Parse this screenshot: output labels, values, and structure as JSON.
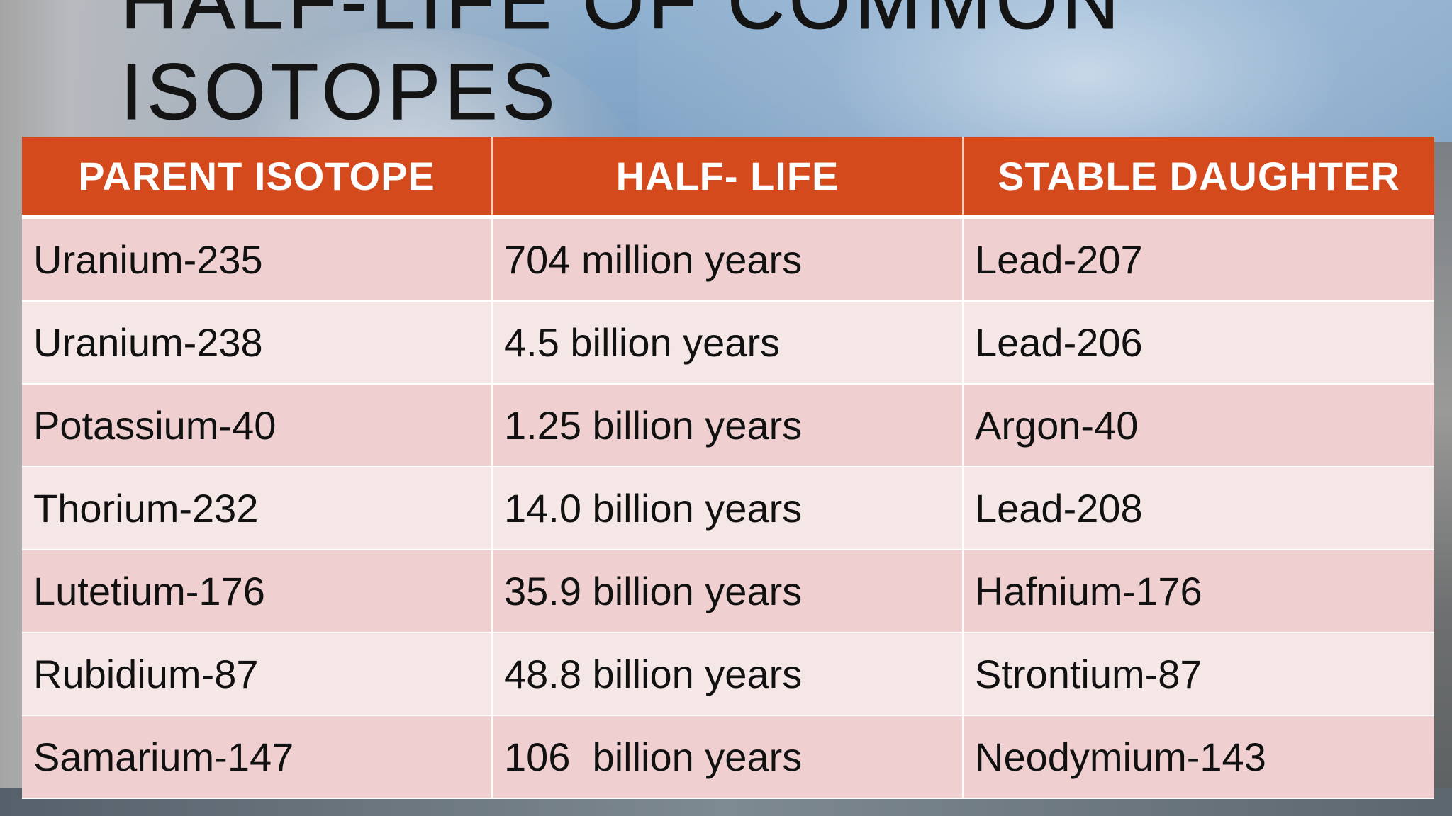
{
  "slide": {
    "title": "HALF-LIFE OF COMMON ISOTOPES"
  },
  "table": {
    "headers": [
      "PARENT ISOTOPE",
      "HALF- LIFE",
      "STABLE DAUGHTER"
    ],
    "rows": [
      [
        "Uranium-235",
        "704 million years",
        "Lead-207"
      ],
      [
        "Uranium-238",
        "4.5 billion years",
        "Lead-206"
      ],
      [
        "Potassium-40",
        "1.25 billion years",
        "Argon-40"
      ],
      [
        "Thorium-232",
        "14.0 billion years",
        "Lead-208"
      ],
      [
        "Lutetium-176",
        "35.9 billion years",
        "Hafnium-176"
      ],
      [
        "Rubidium-87",
        "48.8 billion years",
        "Strontium-87"
      ],
      [
        "Samarium-147",
        "106  billion years",
        "Neodymium-143"
      ]
    ]
  },
  "colors": {
    "header_bg": "#d44a1d",
    "header_text": "#ffffff",
    "row_odd_bg": "#efcfcf",
    "row_even_bg": "#f6e7e7",
    "title_text": "#141414"
  }
}
